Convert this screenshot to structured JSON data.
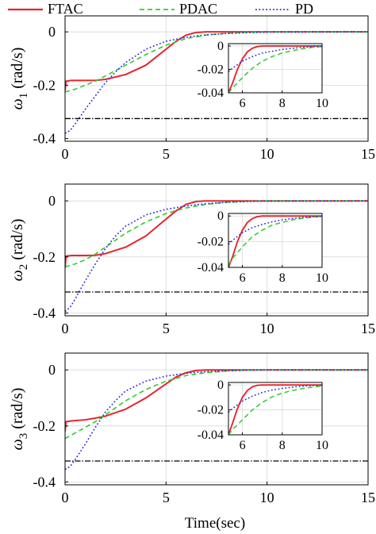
{
  "legend": {
    "placement": "top",
    "entries": [
      {
        "label": "FTAC",
        "color": "#e8232a",
        "dash": "solid"
      },
      {
        "label": "PDAC",
        "color": "#2ecc2e",
        "dash": "dashed"
      },
      {
        "label": "PD",
        "color": "#2b2bd8",
        "dash": "dotted"
      }
    ]
  },
  "colors": {
    "bound": "#000000",
    "grid": "#d8d8d8"
  },
  "xlabel": "Time(sec)",
  "chart_data": [
    {
      "type": "line",
      "ylabel": "ω1 (rad/s)",
      "ylabel_sym": "ω",
      "ylabel_sub": "1",
      "ylabel_unit": " (rad/s)",
      "xlim": [
        0,
        15
      ],
      "ylim": [
        -0.41,
        0.06
      ],
      "xticks": [
        0,
        5,
        10,
        15
      ],
      "yticks": [
        0,
        -0.2,
        -0.4
      ],
      "ytick_labels": [
        "0",
        "-0.2",
        "-0.4"
      ],
      "grid": true,
      "bound": -0.325,
      "series": [
        {
          "name": "FTAC",
          "x": [
            0,
            0.05,
            0.3,
            1.0,
            1.5,
            2.0,
            3.0,
            4.0,
            5.0,
            5.5,
            6.0,
            6.5,
            7.0,
            15.0
          ],
          "y": [
            -0.22,
            -0.185,
            -0.182,
            -0.182,
            -0.182,
            -0.178,
            -0.16,
            -0.125,
            -0.065,
            -0.035,
            -0.012,
            -0.002,
            0.0,
            0.0
          ]
        },
        {
          "name": "PDAC",
          "x": [
            0,
            0.5,
            1.0,
            1.5,
            2.0,
            3.0,
            4.0,
            5.0,
            6.0,
            7.0,
            8.0,
            9.0,
            10.0,
            15.0
          ],
          "y": [
            -0.225,
            -0.215,
            -0.2,
            -0.185,
            -0.165,
            -0.125,
            -0.085,
            -0.05,
            -0.025,
            -0.012,
            -0.005,
            -0.002,
            0.0,
            0.0
          ]
        },
        {
          "name": "PD",
          "x": [
            0,
            0.25,
            0.5,
            1.0,
            1.5,
            2.0,
            2.5,
            3.0,
            4.0,
            5.0,
            6.0,
            7.0,
            8.0,
            9.0,
            10.0,
            15.0
          ],
          "y": [
            -0.38,
            -0.37,
            -0.345,
            -0.29,
            -0.24,
            -0.19,
            -0.15,
            -0.115,
            -0.065,
            -0.035,
            -0.02,
            -0.011,
            -0.006,
            -0.003,
            -0.001,
            0.0
          ]
        }
      ],
      "inset": {
        "xlim": [
          5.3,
          10
        ],
        "ylim": [
          -0.04,
          0.002
        ],
        "xticks": [
          6,
          8,
          10
        ],
        "yticks": [
          0,
          -0.02,
          -0.04
        ],
        "ytick_labels": [
          "0",
          "-0.02",
          "-0.04"
        ],
        "series": [
          {
            "name": "FTAC",
            "x": [
              5.3,
              5.5,
              5.75,
              6.0,
              6.25,
              6.5,
              6.75,
              7.0,
              10.0
            ],
            "y": [
              -0.04,
              -0.032,
              -0.02,
              -0.011,
              -0.005,
              -0.002,
              -0.0005,
              0.0,
              0.0
            ]
          },
          {
            "name": "PDAC",
            "x": [
              5.3,
              5.5,
              6.0,
              6.5,
              7.0,
              7.5,
              8.0,
              8.5,
              9.0,
              9.5,
              10.0
            ],
            "y": [
              -0.04,
              -0.036,
              -0.027,
              -0.019,
              -0.013,
              -0.009,
              -0.006,
              -0.004,
              -0.0025,
              -0.0012,
              -0.0005
            ]
          },
          {
            "name": "PD",
            "x": [
              5.3,
              5.5,
              6.0,
              6.5,
              7.0,
              7.5,
              8.0,
              8.5,
              9.0,
              9.5,
              10.0
            ],
            "y": [
              -0.022,
              -0.019,
              -0.013,
              -0.009,
              -0.006,
              -0.0045,
              -0.003,
              -0.002,
              -0.0012,
              -0.0006,
              -0.0003
            ]
          }
        ]
      }
    },
    {
      "type": "line",
      "ylabel": "ω2 (rad/s)",
      "ylabel_sym": "ω",
      "ylabel_sub": "2",
      "ylabel_unit": " (rad/s)",
      "xlim": [
        0,
        15
      ],
      "ylim": [
        -0.41,
        0.06
      ],
      "xticks": [
        0,
        5,
        10,
        15
      ],
      "yticks": [
        0,
        -0.2,
        -0.4
      ],
      "ytick_labels": [
        "0",
        "-0.2",
        "-0.4"
      ],
      "grid": true,
      "bound": -0.325,
      "series": [
        {
          "name": "FTAC",
          "x": [
            0,
            0.05,
            0.3,
            1.0,
            1.5,
            2.0,
            3.0,
            4.0,
            5.0,
            5.5,
            6.0,
            6.5,
            7.0,
            15.0
          ],
          "y": [
            -0.24,
            -0.197,
            -0.195,
            -0.195,
            -0.194,
            -0.188,
            -0.165,
            -0.125,
            -0.065,
            -0.035,
            -0.012,
            -0.002,
            0.0,
            0.0
          ]
        },
        {
          "name": "PDAC",
          "x": [
            0,
            0.5,
            1.0,
            1.5,
            2.0,
            3.0,
            4.0,
            5.0,
            6.0,
            7.0,
            8.0,
            9.0,
            10.0,
            15.0
          ],
          "y": [
            -0.235,
            -0.225,
            -0.21,
            -0.19,
            -0.165,
            -0.115,
            -0.075,
            -0.045,
            -0.025,
            -0.012,
            -0.005,
            -0.002,
            0.0,
            0.0
          ]
        },
        {
          "name": "PD",
          "x": [
            0,
            0.25,
            0.5,
            1.0,
            1.5,
            2.0,
            2.5,
            3.0,
            4.0,
            5.0,
            6.0,
            7.0,
            8.0,
            9.0,
            10.0,
            15.0
          ],
          "y": [
            -0.395,
            -0.38,
            -0.35,
            -0.285,
            -0.225,
            -0.17,
            -0.125,
            -0.09,
            -0.05,
            -0.03,
            -0.018,
            -0.01,
            -0.005,
            -0.002,
            -0.001,
            0.0
          ]
        }
      ],
      "inset": {
        "xlim": [
          5.3,
          10
        ],
        "ylim": [
          -0.04,
          0.002
        ],
        "xticks": [
          6,
          8,
          10
        ],
        "yticks": [
          0,
          -0.02,
          -0.04
        ],
        "ytick_labels": [
          "0",
          "-0.02",
          "-0.04"
        ],
        "series": [
          {
            "name": "FTAC",
            "x": [
              5.3,
              5.5,
              5.75,
              6.0,
              6.25,
              6.5,
              6.75,
              7.0,
              10.0
            ],
            "y": [
              -0.04,
              -0.032,
              -0.02,
              -0.011,
              -0.005,
              -0.002,
              -0.0005,
              0.0,
              0.0
            ]
          },
          {
            "name": "PDAC",
            "x": [
              5.3,
              5.5,
              6.0,
              6.5,
              7.0,
              7.5,
              8.0,
              8.5,
              9.0,
              9.5,
              10.0
            ],
            "y": [
              -0.038,
              -0.033,
              -0.024,
              -0.016,
              -0.011,
              -0.007,
              -0.005,
              -0.003,
              -0.0018,
              -0.001,
              -0.0004
            ]
          },
          {
            "name": "PD",
            "x": [
              5.3,
              5.5,
              6.0,
              6.5,
              7.0,
              7.5,
              8.0,
              8.5,
              9.0,
              9.5,
              10.0
            ],
            "y": [
              -0.022,
              -0.019,
              -0.013,
              -0.009,
              -0.0065,
              -0.0045,
              -0.003,
              -0.002,
              -0.0012,
              -0.0006,
              -0.0003
            ]
          }
        ]
      }
    },
    {
      "type": "line",
      "ylabel": "ω3 (rad/s)",
      "ylabel_sym": "ω",
      "ylabel_sub": "3",
      "ylabel_unit": " (rad/s)",
      "xlim": [
        0,
        15
      ],
      "ylim": [
        -0.41,
        0.06
      ],
      "xticks": [
        0,
        5,
        10,
        15
      ],
      "yticks": [
        0,
        -0.2,
        -0.4
      ],
      "ytick_labels": [
        "0",
        "-0.2",
        "-0.4"
      ],
      "grid": true,
      "bound": -0.325,
      "series": [
        {
          "name": "FTAC",
          "x": [
            0,
            0.05,
            0.3,
            1.0,
            1.5,
            2.0,
            3.0,
            4.0,
            5.0,
            5.5,
            6.0,
            6.5,
            7.0,
            15.0
          ],
          "y": [
            -0.22,
            -0.185,
            -0.182,
            -0.178,
            -0.172,
            -0.165,
            -0.14,
            -0.1,
            -0.05,
            -0.025,
            -0.01,
            -0.002,
            0.0,
            0.0
          ]
        },
        {
          "name": "PDAC",
          "x": [
            0,
            0.5,
            1.0,
            1.5,
            2.0,
            3.0,
            4.0,
            5.0,
            6.0,
            7.0,
            8.0,
            9.0,
            10.0,
            15.0
          ],
          "y": [
            -0.245,
            -0.225,
            -0.205,
            -0.185,
            -0.16,
            -0.11,
            -0.07,
            -0.04,
            -0.02,
            -0.01,
            -0.004,
            -0.001,
            0.0,
            0.0
          ]
        },
        {
          "name": "PD",
          "x": [
            0,
            0.25,
            0.5,
            1.0,
            1.5,
            2.0,
            2.5,
            3.0,
            4.0,
            5.0,
            6.0,
            7.0,
            8.0,
            9.0,
            10.0,
            15.0
          ],
          "y": [
            -0.355,
            -0.345,
            -0.32,
            -0.265,
            -0.205,
            -0.15,
            -0.11,
            -0.075,
            -0.04,
            -0.022,
            -0.012,
            -0.006,
            -0.003,
            -0.001,
            0.0,
            0.0
          ]
        }
      ],
      "inset": {
        "xlim": [
          5.3,
          10
        ],
        "ylim": [
          -0.04,
          0.002
        ],
        "xticks": [
          6,
          8,
          10
        ],
        "yticks": [
          0,
          -0.02,
          -0.04
        ],
        "ytick_labels": [
          "0",
          "-0.02",
          "-0.04"
        ],
        "series": [
          {
            "name": "FTAC",
            "x": [
              5.3,
              5.5,
              5.75,
              6.0,
              6.25,
              6.5,
              6.75,
              7.0,
              10.0
            ],
            "y": [
              -0.04,
              -0.031,
              -0.019,
              -0.01,
              -0.0045,
              -0.0015,
              -0.0003,
              0.0,
              0.0
            ]
          },
          {
            "name": "PDAC",
            "x": [
              5.3,
              5.5,
              6.0,
              6.5,
              7.0,
              7.5,
              8.0,
              8.5,
              9.0,
              9.5,
              10.0
            ],
            "y": [
              -0.04,
              -0.036,
              -0.028,
              -0.02,
              -0.014,
              -0.0095,
              -0.0065,
              -0.0045,
              -0.003,
              -0.0018,
              -0.001
            ]
          },
          {
            "name": "PD",
            "x": [
              5.3,
              5.5,
              6.0,
              6.5,
              7.0,
              7.5,
              8.0,
              8.5,
              9.0,
              9.5,
              10.0
            ],
            "y": [
              -0.022,
              -0.019,
              -0.013,
              -0.009,
              -0.006,
              -0.004,
              -0.0028,
              -0.0018,
              -0.001,
              -0.0005,
              -0.0002
            ]
          }
        ]
      }
    }
  ]
}
